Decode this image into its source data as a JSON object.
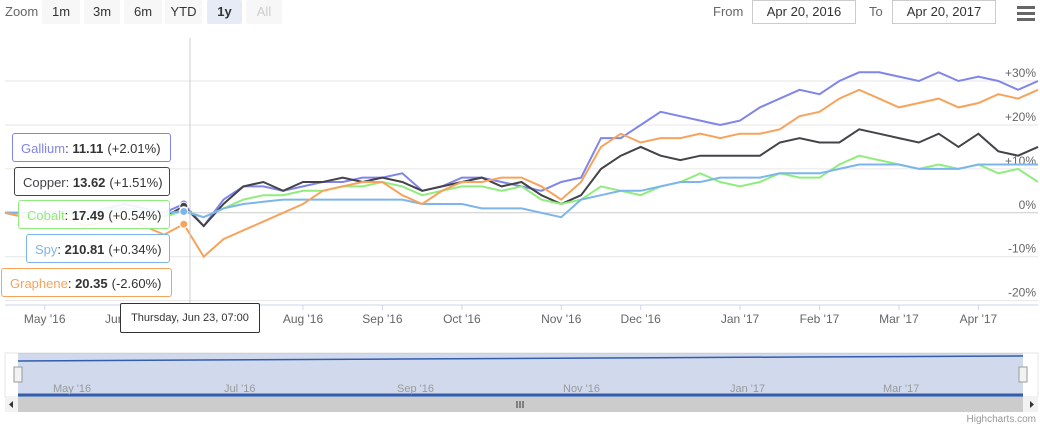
{
  "chart_data": {
    "type": "line",
    "range_selector": {
      "zoom_label": "Zoom",
      "buttons": [
        "1m",
        "3m",
        "6m",
        "YTD",
        "1y",
        "All"
      ],
      "selected": 4,
      "disabled": [
        5
      ],
      "from_label": "From",
      "from": "Apr 20, 2016",
      "to_label": "To",
      "to": "Apr 20, 2017"
    },
    "categories": [
      null,
      null,
      "May '16",
      null,
      null,
      null,
      "Jun '16",
      null,
      null,
      null,
      null,
      null,
      null,
      null,
      null,
      "Aug '16",
      null,
      null,
      null,
      "Sep '16",
      null,
      null,
      null,
      "Oct '16",
      null,
      null,
      null,
      null,
      "Nov '16",
      null,
      null,
      null,
      "Dec '16",
      null,
      null,
      null,
      null,
      "Jan '17",
      null,
      null,
      null,
      "Feb '17",
      null,
      null,
      null,
      "Mar '17",
      null,
      null,
      null,
      "Apr '17",
      null,
      null,
      null
    ],
    "series": [
      {
        "name": "Gallium",
        "color": "#8085e9",
        "values": [
          0,
          -1,
          -1,
          0,
          -1,
          1,
          2,
          1,
          0,
          2,
          -3,
          3,
          6,
          6,
          5,
          6,
          7,
          7,
          8,
          8,
          9,
          5,
          6,
          8,
          8,
          7,
          6,
          5,
          7,
          8,
          17,
          17,
          20,
          23,
          22,
          21,
          20,
          21,
          24,
          26,
          28,
          27,
          30,
          32,
          32,
          31,
          30,
          32,
          30,
          31,
          30,
          28,
          30
        ]
      },
      {
        "name": "Copper",
        "color": "#434348",
        "values": [
          0,
          0,
          -1,
          0,
          -1,
          0,
          1,
          0,
          -1,
          1.5,
          -3,
          2,
          6,
          7,
          5,
          7,
          7,
          8,
          7,
          8,
          7,
          5,
          6,
          7,
          8,
          6,
          7,
          4,
          2,
          4,
          10,
          13,
          15,
          13,
          12,
          13,
          13,
          13,
          13,
          16,
          17,
          16,
          16,
          19,
          18,
          17,
          16,
          18,
          15,
          18,
          14,
          13,
          15
        ]
      },
      {
        "name": "Cobalt",
        "color": "#90ed7d",
        "values": [
          0,
          0,
          -1,
          0,
          -1,
          0,
          1,
          0,
          -1,
          0.5,
          -1,
          1,
          3,
          4,
          4,
          5,
          5,
          6,
          6,
          7,
          6,
          4,
          5,
          6,
          6,
          5,
          6,
          3,
          2,
          3,
          6,
          5,
          4,
          6,
          7,
          9,
          7,
          6,
          7,
          9,
          8,
          8,
          11,
          13,
          12,
          11,
          10,
          11,
          10,
          11,
          9,
          10,
          7
        ]
      },
      {
        "name": "Spy",
        "color": "#7cb5ec",
        "values": [
          0,
          0,
          0,
          0.5,
          0,
          1,
          1,
          0.5,
          0,
          0.3,
          -1,
          1,
          2,
          2.5,
          3,
          3,
          3,
          3,
          3,
          3,
          3,
          2,
          2,
          2,
          1,
          1,
          1,
          0,
          -1,
          3,
          4,
          5,
          5,
          6,
          7,
          7,
          8,
          8,
          8,
          9,
          9,
          9,
          10,
          11,
          11,
          11,
          10,
          10,
          10,
          11,
          11,
          11,
          11
        ]
      },
      {
        "name": "Graphene",
        "color": "#f7a35c",
        "values": [
          0,
          -1,
          -2,
          -1,
          -3,
          -2,
          -1,
          -3,
          -5,
          -2.6,
          -10,
          -6,
          -4,
          -2,
          0,
          2,
          5,
          6,
          7,
          7,
          4,
          2,
          5,
          7,
          7,
          8,
          8,
          6,
          3,
          7,
          15,
          18,
          16,
          17,
          17,
          18,
          17,
          18,
          18,
          19,
          22,
          23,
          26,
          28,
          26,
          24,
          25,
          26,
          24,
          25,
          27,
          26,
          28
        ]
      }
    ],
    "ylim": [
      -21,
      39.8
    ],
    "yticks": [
      {
        "value": -20,
        "label": "-20%"
      },
      {
        "value": -10,
        "label": "-10%"
      },
      {
        "value": 0,
        "label": "0%"
      },
      {
        "value": 10,
        "label": "+10%"
      },
      {
        "value": 20,
        "label": "+20%"
      },
      {
        "value": 30,
        "label": "+30%"
      }
    ],
    "grid": true,
    "tooltip": {
      "index": 9,
      "date": "Thursday, Jun 23, 07:00",
      "rows": [
        {
          "value": "11.11",
          "change": "(+2.01%)"
        },
        {
          "value": "13.62",
          "change": "(+1.51%)"
        },
        {
          "value": "17.49",
          "change": "(+0.54%)"
        },
        {
          "value": "210.81",
          "change": "(+0.34%)"
        },
        {
          "value": "20.35",
          "change": "(-2.60%)"
        }
      ]
    },
    "navigator": {
      "labels": [
        "May '16",
        "Jul '16",
        "Sep '16",
        "Nov '16",
        "Jan '17",
        "Mar '17"
      ]
    },
    "credits": "Highcharts.com"
  }
}
